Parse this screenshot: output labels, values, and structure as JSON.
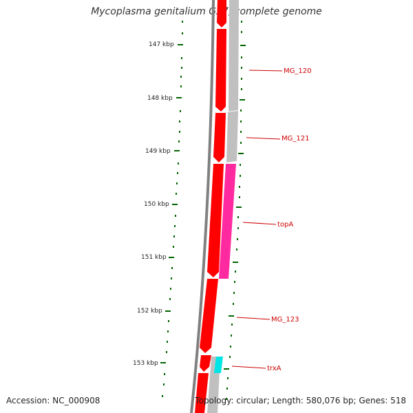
{
  "header": {
    "title": "Mycoplasma genitalium G37, complete genome"
  },
  "footer": {
    "accession": "Accession: NC_000908",
    "summary": "Topology: circular; Length: 580,076 bp; Genes: 518"
  },
  "scale": {
    "tick_labels": [
      "147 kbp",
      "148 kbp",
      "149 kbp",
      "150 kbp",
      "151 kbp",
      "152 kbp",
      "153 kbp"
    ]
  },
  "genes": [
    {
      "label": "MG_120",
      "strand": "forward",
      "color": "#ff0000"
    },
    {
      "label": "MG_121",
      "strand": "forward",
      "color": "#ff0000"
    },
    {
      "label": "topA",
      "strand": "forward",
      "color": "#ff2aa0"
    },
    {
      "label": "MG_123",
      "strand": "forward",
      "color": "#ff0000"
    },
    {
      "label": "trxA",
      "strand": "forward",
      "color": "#00e5e5"
    }
  ],
  "colors": {
    "backbone": "#808080",
    "cds": "#ff0000",
    "cog_track": "#c0c0c0",
    "topA": "#ff2aa0",
    "trxA": "#00e5e5",
    "ticks": "#006400",
    "labels": "#cc0000"
  }
}
